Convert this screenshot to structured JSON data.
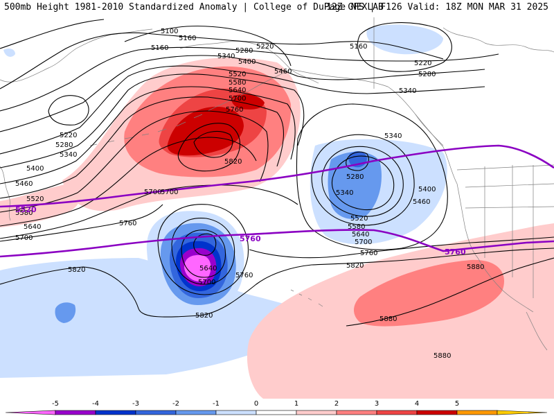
{
  "header": {
    "left": "500mb Height 1981-2010 Standardized Anomaly | College of DuPage NEXLAB",
    "right": "12Z GFS | F126 Valid: 18Z MON MAR 31 2025"
  },
  "map": {
    "type": "500mb height contours with standardized anomaly shading",
    "contour_labels": [
      "5100",
      "5160",
      "5220",
      "5280",
      "5340",
      "5400",
      "5460",
      "5520",
      "5580",
      "5640",
      "5700",
      "5760",
      "5820",
      "5880"
    ],
    "climatology_contour_labels": [
      "5520",
      "5760"
    ],
    "features": {
      "positive_anomaly_aleutians": "5820",
      "closed_low_central_pacific": "5640",
      "negative_anomaly_gulf_of_alaska": "5280",
      "ridge_southeast": "5880"
    },
    "colors": {
      "contour": "#000000",
      "climatology_contour": "#8a00c2",
      "map_boundaries": "#808080"
    }
  },
  "colorbar": {
    "ticks": [
      "-5",
      "-4",
      "-3",
      "-2",
      "-1",
      "0",
      "1",
      "2",
      "3",
      "4",
      "5"
    ],
    "colors": [
      "#ff66ff",
      "#9900cc",
      "#0033cc",
      "#3366dd",
      "#6699ee",
      "#cce0ff",
      "#ffffff",
      "#ffcccc",
      "#ff8080",
      "#ee4444",
      "#cc0000",
      "#ff9900",
      "#ffcc00"
    ]
  }
}
